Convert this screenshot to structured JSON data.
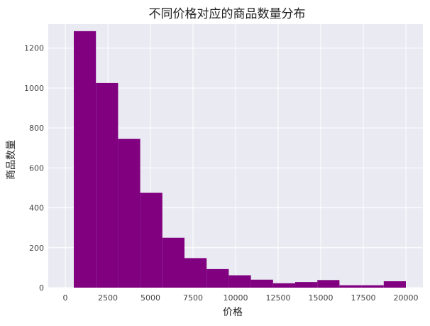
{
  "chart_data": {
    "type": "bar",
    "title": "不同价格对应的商品数量分布",
    "xlabel": "价格",
    "ylabel": "商品数量",
    "bin_edges": [
      500,
      1800,
      3100,
      4400,
      5700,
      7000,
      8300,
      9600,
      10900,
      12200,
      13500,
      14800,
      16100,
      17400,
      18700,
      20000
    ],
    "values": [
      1285,
      1025,
      745,
      475,
      250,
      148,
      93,
      62,
      40,
      22,
      28,
      38,
      12,
      12,
      32
    ],
    "xlim": [
      -1000,
      21000
    ],
    "ylim": [
      0,
      1320
    ],
    "xticks": [
      0,
      2500,
      5000,
      7500,
      10000,
      12500,
      15000,
      17500,
      20000
    ],
    "yticks": [
      0,
      200,
      400,
      600,
      800,
      1000,
      1200
    ],
    "bar_color": "#800080",
    "background_color": "#eaeaf2",
    "grid_color": "#ffffff",
    "grid": true
  }
}
